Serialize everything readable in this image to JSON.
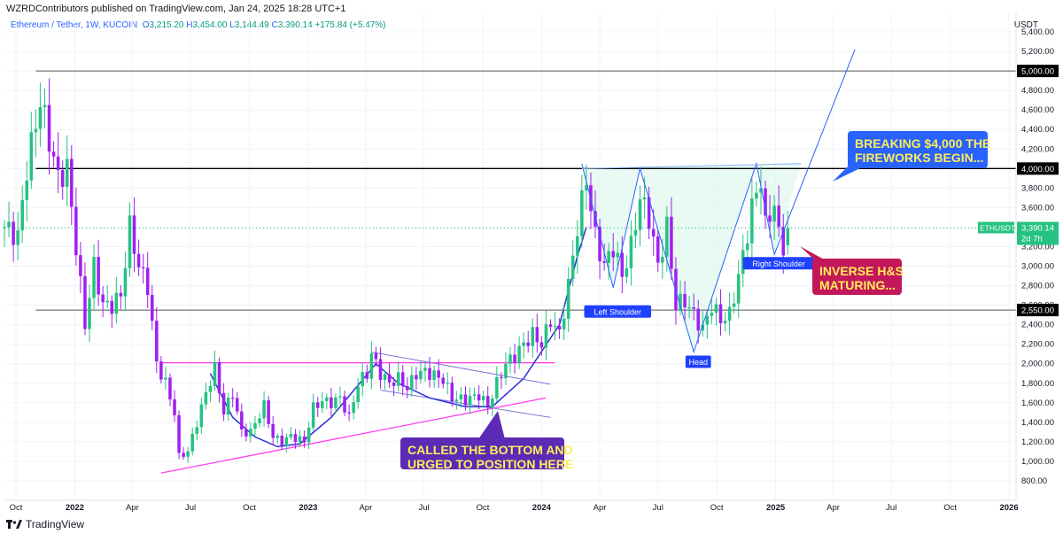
{
  "header": {
    "published": "WZRDContributors published on TradingView.com, Jan 24, 2025 18:28 UTC+1",
    "symbol": "Ethereum / Tether, 1W, KUCOIN",
    "o_label": "O",
    "o_value": "3,215.20",
    "h_label": "H",
    "h_value": "3,454.00",
    "l_label": "L",
    "l_value": "3,144.49",
    "c_label": "C",
    "c_value": "3,390.14",
    "change": "+175.84 (+5.47%)",
    "unit": "USDT"
  },
  "footer": {
    "brand": "TradingView",
    "brand_icon": "tradingview-logo-icon"
  },
  "colors": {
    "bull": "#26c281",
    "bear": "#a020f0",
    "trend": "#2a2ed6",
    "support": "#ff3cf0",
    "zone": "#d9f7e9",
    "callout_blue": "#2962ff",
    "callout_red": "#c2185b",
    "callout_purple": "#5b2bb5",
    "callout_text": "#ffee58"
  },
  "chart_data": {
    "type": "candlestick",
    "y_axis": {
      "scale": "linear",
      "min": 600,
      "max": 5600,
      "ticks": [
        800,
        1000,
        1200,
        1400,
        1600,
        1800,
        2000,
        2200,
        2400,
        2600,
        2800,
        3000,
        3200,
        3400,
        3600,
        3800,
        4000,
        4200,
        4400,
        4600,
        4800,
        5000,
        5200,
        5400
      ]
    },
    "y_tick_labels": [
      "800.00",
      "1,000.00",
      "1,200.00",
      "1,400.00",
      "1,600.00",
      "1,800.00",
      "2,000.00",
      "2,200.00",
      "2,400.00",
      "2,600.00",
      "2,800.00",
      "3,000.00",
      "3,200.00",
      "3,400.00",
      "3,600.00",
      "3,800.00",
      "4,000.00",
      "4,200.00",
      "4,400.00",
      "4,600.00",
      "4,800.00",
      "5,000.00",
      "5,200.00",
      "5,400.00"
    ],
    "x_axis": {
      "start": "2021-09-13",
      "end": "2026-01-12",
      "interval": "1W"
    },
    "x_tick_labels": [
      {
        "date": "2021-10-01",
        "label": "Oct",
        "bold": false
      },
      {
        "date": "2022-01-01",
        "label": "2022",
        "bold": true
      },
      {
        "date": "2022-04-01",
        "label": "Apr",
        "bold": false
      },
      {
        "date": "2022-07-01",
        "label": "Jul",
        "bold": false
      },
      {
        "date": "2022-10-01",
        "label": "Oct",
        "bold": false
      },
      {
        "date": "2023-01-01",
        "label": "2023",
        "bold": true
      },
      {
        "date": "2023-04-01",
        "label": "Apr",
        "bold": false
      },
      {
        "date": "2023-07-01",
        "label": "Jul",
        "bold": false
      },
      {
        "date": "2023-10-01",
        "label": "Oct",
        "bold": false
      },
      {
        "date": "2024-01-01",
        "label": "2024",
        "bold": true
      },
      {
        "date": "2024-04-01",
        "label": "Apr",
        "bold": false
      },
      {
        "date": "2024-07-01",
        "label": "Jul",
        "bold": false
      },
      {
        "date": "2024-10-01",
        "label": "Oct",
        "bold": false
      },
      {
        "date": "2025-01-01",
        "label": "2025",
        "bold": true
      },
      {
        "date": "2025-04-01",
        "label": "Apr",
        "bold": false
      },
      {
        "date": "2025-07-01",
        "label": "Jul",
        "bold": false
      },
      {
        "date": "2025-10-01",
        "label": "Oct",
        "bold": false
      },
      {
        "date": "2026-01-01",
        "label": "2026",
        "bold": true
      }
    ],
    "weekly_close_path": [
      [
        "2021-09-13",
        3400
      ],
      [
        "2021-10-04",
        3300
      ],
      [
        "2021-10-18",
        4000
      ],
      [
        "2021-11-08",
        4700
      ],
      [
        "2021-11-22",
        4300
      ],
      [
        "2021-12-06",
        3900
      ],
      [
        "2021-12-20",
        4000
      ],
      [
        "2022-01-03",
        3200
      ],
      [
        "2022-01-17",
        2400
      ],
      [
        "2022-01-31",
        3000
      ],
      [
        "2022-02-14",
        2600
      ],
      [
        "2022-02-28",
        2600
      ],
      [
        "2022-03-14",
        2700
      ],
      [
        "2022-03-28",
        3400
      ],
      [
        "2022-04-11",
        3000
      ],
      [
        "2022-04-25",
        2800
      ],
      [
        "2022-05-09",
        2000
      ],
      [
        "2022-05-23",
        1800
      ],
      [
        "2022-06-06",
        1500
      ],
      [
        "2022-06-13",
        1050
      ],
      [
        "2022-06-27",
        1100
      ],
      [
        "2022-07-11",
        1400
      ],
      [
        "2022-07-25",
        1700
      ],
      [
        "2022-08-08",
        1950
      ],
      [
        "2022-08-22",
        1500
      ],
      [
        "2022-09-05",
        1700
      ],
      [
        "2022-09-19",
        1300
      ],
      [
        "2022-10-03",
        1300
      ],
      [
        "2022-10-24",
        1570
      ],
      [
        "2022-11-07",
        1250
      ],
      [
        "2022-11-21",
        1200
      ],
      [
        "2022-12-05",
        1260
      ],
      [
        "2022-12-26",
        1200
      ],
      [
        "2023-01-09",
        1550
      ],
      [
        "2023-01-23",
        1620
      ],
      [
        "2023-02-06",
        1600
      ],
      [
        "2023-02-20",
        1650
      ],
      [
        "2023-03-06",
        1450
      ],
      [
        "2023-03-20",
        1800
      ],
      [
        "2023-04-03",
        1900
      ],
      [
        "2023-04-10",
        2100
      ],
      [
        "2023-04-24",
        1900
      ],
      [
        "2023-05-08",
        1800
      ],
      [
        "2023-05-22",
        1850
      ],
      [
        "2023-06-05",
        1750
      ],
      [
        "2023-06-19",
        1900
      ],
      [
        "2023-07-03",
        1920
      ],
      [
        "2023-07-17",
        1880
      ],
      [
        "2023-07-31",
        1840
      ],
      [
        "2023-08-14",
        1650
      ],
      [
        "2023-09-04",
        1630
      ],
      [
        "2023-09-25",
        1680
      ],
      [
        "2023-10-09",
        1560
      ],
      [
        "2023-10-23",
        1800
      ],
      [
        "2023-11-06",
        2000
      ],
      [
        "2023-11-20",
        2080
      ],
      [
        "2023-12-04",
        2200
      ],
      [
        "2023-12-18",
        2300
      ],
      [
        "2024-01-01",
        2200
      ],
      [
        "2024-01-15",
        2450
      ],
      [
        "2024-01-29",
        2300
      ],
      [
        "2024-02-12",
        2800
      ],
      [
        "2024-02-26",
        3400
      ],
      [
        "2024-03-11",
        3900
      ],
      [
        "2024-03-25",
        3300
      ],
      [
        "2024-04-08",
        3000
      ],
      [
        "2024-04-22",
        3200
      ],
      [
        "2024-05-06",
        2900
      ],
      [
        "2024-05-20",
        3200
      ],
      [
        "2024-06-03",
        3700
      ],
      [
        "2024-06-17",
        3500
      ],
      [
        "2024-07-01",
        3000
      ],
      [
        "2024-07-15",
        3400
      ],
      [
        "2024-07-29",
        2600
      ],
      [
        "2024-08-12",
        2650
      ],
      [
        "2024-08-26",
        2500
      ],
      [
        "2024-09-09",
        2350
      ],
      [
        "2024-09-23",
        2600
      ],
      [
        "2024-10-07",
        2450
      ],
      [
        "2024-10-21",
        2500
      ],
      [
        "2024-11-04",
        2900
      ],
      [
        "2024-11-11",
        3100
      ],
      [
        "2024-11-25",
        3600
      ],
      [
        "2024-12-09",
        3900
      ],
      [
        "2024-12-16",
        3400
      ],
      [
        "2024-12-30",
        3650
      ],
      [
        "2025-01-06",
        3300
      ],
      [
        "2025-01-13",
        3215
      ],
      [
        "2025-01-20",
        3390
      ]
    ],
    "horizontal_levels": [
      {
        "value": 5000,
        "label": "5,000.00"
      },
      {
        "value": 4000,
        "label": "4,000.00"
      },
      {
        "value": 2550,
        "label": "2,550.00"
      }
    ],
    "support_lines": [
      {
        "from": [
          "2022-05-16",
          2010
        ],
        "to": [
          "2024-01-22",
          2010
        ]
      },
      {
        "from": [
          "2022-05-16",
          880
        ],
        "to": [
          "2024-01-08",
          1650
        ]
      }
    ],
    "channel_lines": [
      {
        "from": [
          "2023-04-10",
          2120
        ],
        "to": [
          "2024-01-15",
          1790
        ]
      },
      {
        "from": [
          "2023-04-24",
          1730
        ],
        "to": [
          "2024-01-15",
          1450
        ]
      }
    ],
    "price_marker": {
      "label": "ETHUSDT",
      "value": 3390.14,
      "value_label": "3,390.14",
      "countdown": "2d 7h"
    },
    "patterns": {
      "left_shoulder": "Left Shoulder",
      "head": "Head",
      "right_shoulder": "Right Shoulder"
    },
    "annotations": {
      "callout_top": "BREAKING $4,000 THE FIREWORKS BEGIN...",
      "callout_right": "INVERSE H&S MATURING...",
      "callout_bottom": "CALLED THE BOTTOM AND URGED TO POSITION HERE"
    }
  }
}
